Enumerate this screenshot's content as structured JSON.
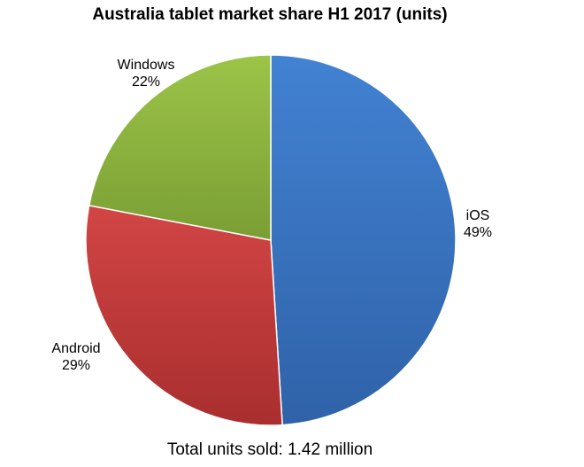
{
  "chart_data": {
    "type": "pie",
    "title": "Australia tablet market share H1 2017 (units)",
    "footnote": "Total units sold: 1.42 million",
    "slices": [
      {
        "label": "iOS",
        "value": 49,
        "value_label": "49%",
        "color": "#3b76c4"
      },
      {
        "label": "Android",
        "value": 29,
        "value_label": "29%",
        "color": "#c63a3a"
      },
      {
        "label": "Windows",
        "value": 22,
        "value_label": "22%",
        "color": "#8db53e"
      }
    ]
  }
}
